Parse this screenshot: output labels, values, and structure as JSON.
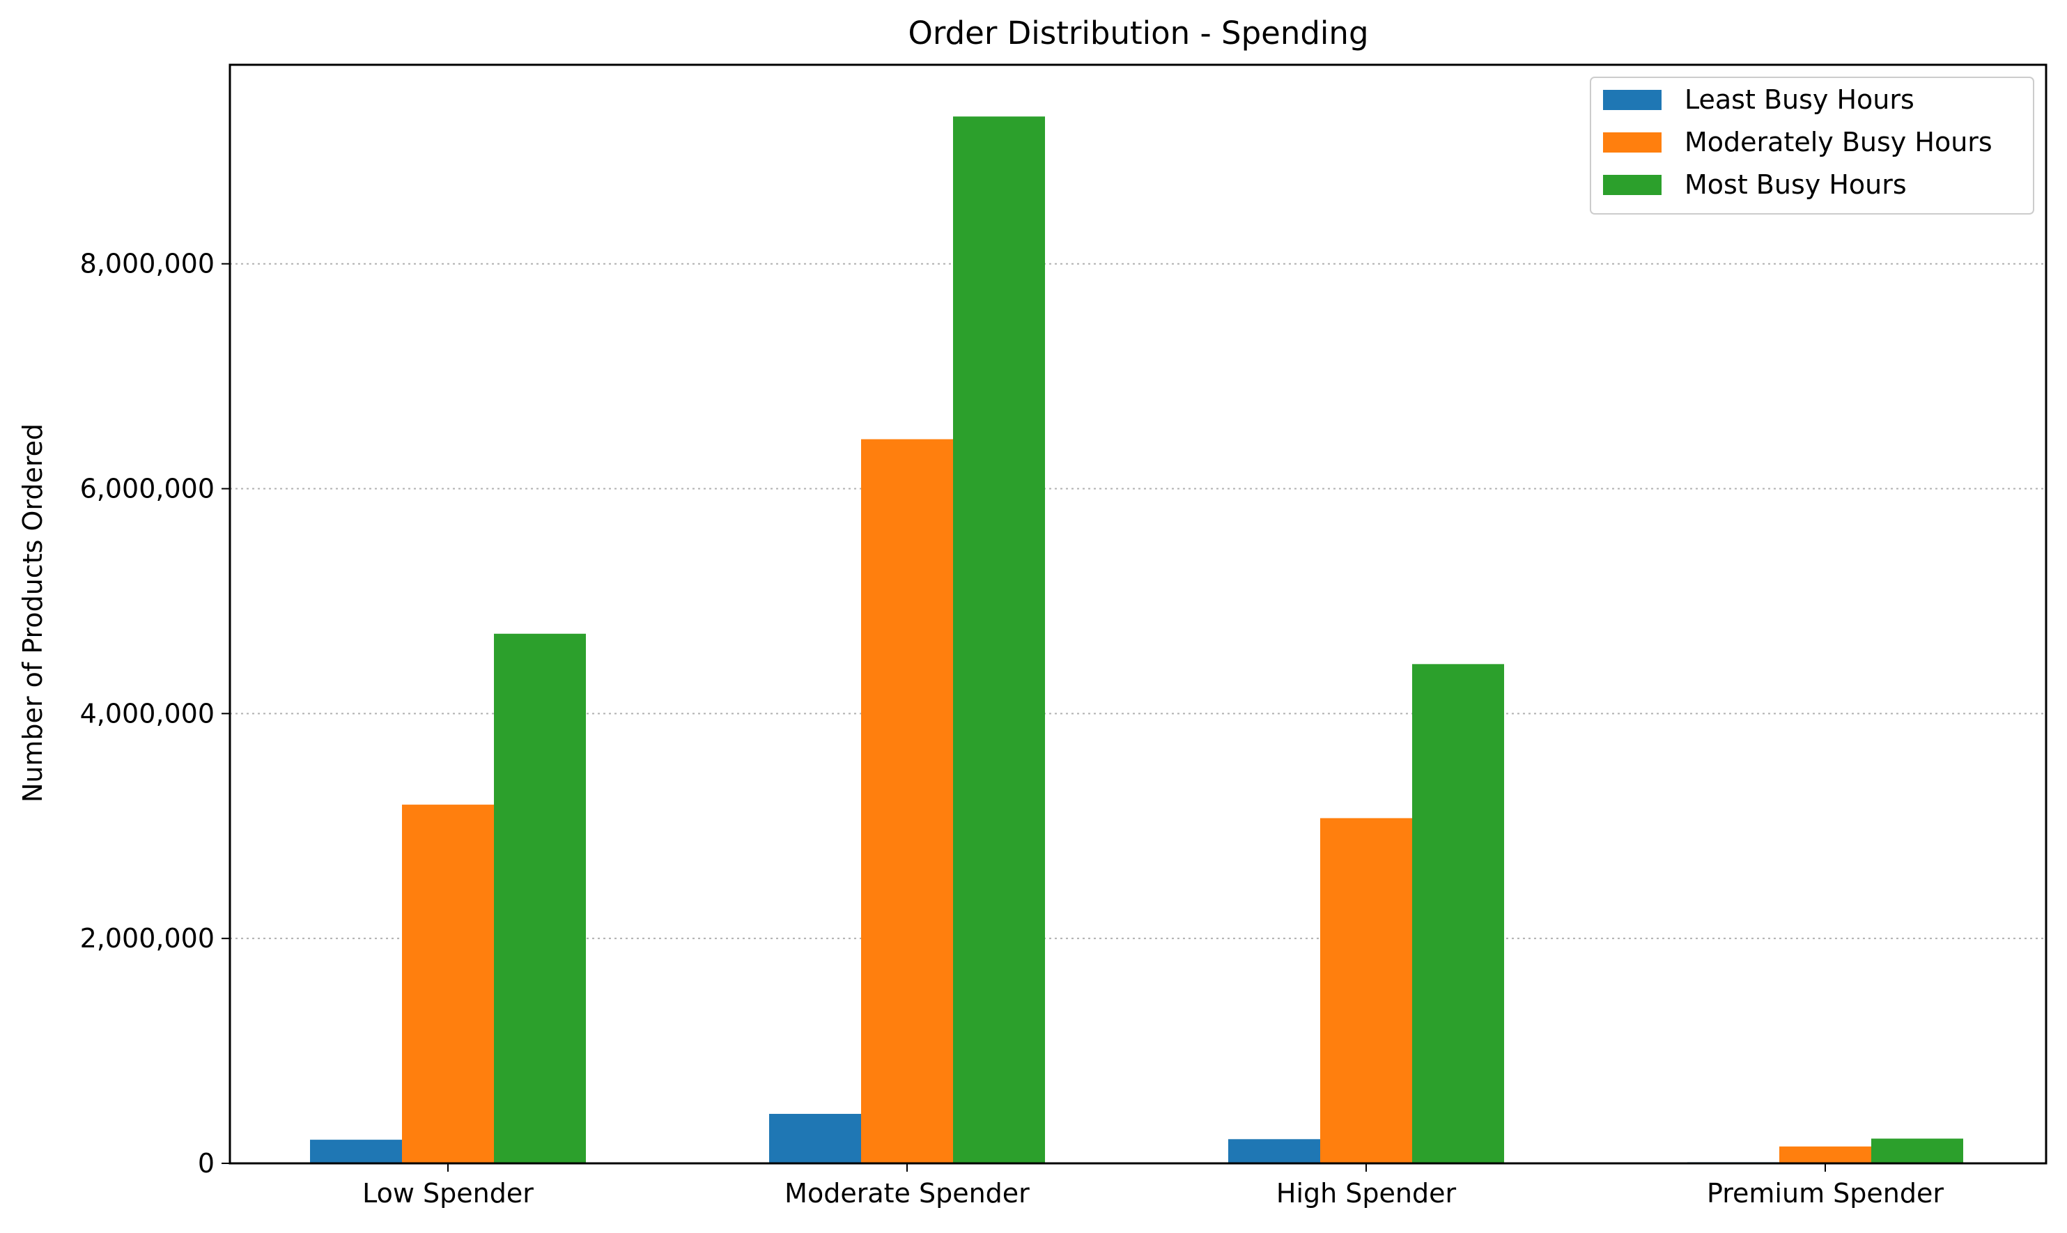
{
  "chart_data": {
    "type": "bar",
    "title": "Order Distribution - Spending",
    "xlabel": "",
    "ylabel": "Number of Products Ordered",
    "categories": [
      "Low Spender",
      "Moderate Spender",
      "High Spender",
      "Premium Spender"
    ],
    "series": [
      {
        "name": "Least Busy Hours",
        "color": "#1f77b4",
        "values": [
          210000,
          440000,
          215000,
          10000
        ]
      },
      {
        "name": "Moderately Busy Hours",
        "color": "#ff7f0e",
        "values": [
          3190000,
          6440000,
          3070000,
          150000
        ]
      },
      {
        "name": "Most Busy Hours",
        "color": "#2ca02c",
        "values": [
          4710000,
          9310000,
          4440000,
          220000
        ]
      }
    ],
    "yticks": [
      0,
      2000000,
      4000000,
      6000000,
      8000000
    ],
    "ytick_labels": [
      "0",
      "2,000,000",
      "4,000,000",
      "6,000,000",
      "8,000,000"
    ],
    "ylim": [
      0,
      9770000
    ],
    "grid": {
      "y": true,
      "x": false,
      "style": "dotted"
    },
    "legend": {
      "position": "top-right"
    }
  }
}
